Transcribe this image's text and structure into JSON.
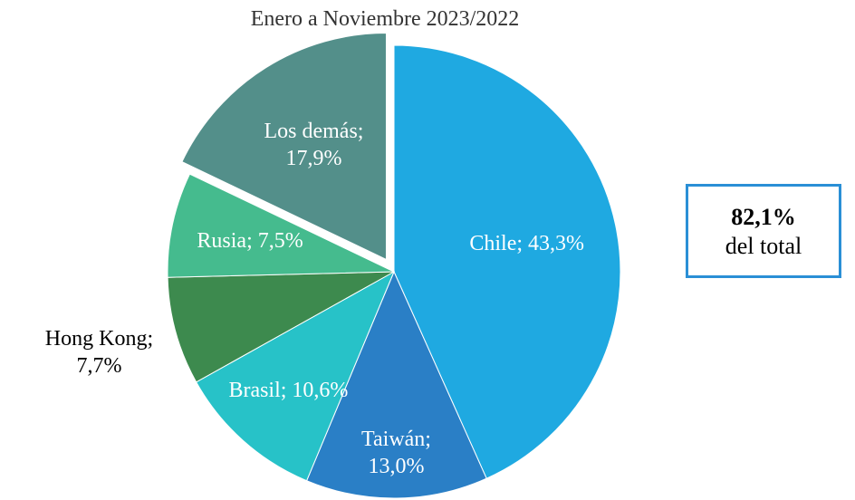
{
  "chart_data": {
    "type": "pie",
    "subtitle": "Enero a Noviembre  2023/2022",
    "categories": [
      "Chile",
      "Taiwán",
      "Brasil",
      "Hong Kong",
      "Rusia",
      "Los demás"
    ],
    "values": [
      43.3,
      13.0,
      10.6,
      7.7,
      7.5,
      17.9
    ],
    "value_labels": [
      "Chile; 43,3%",
      "Taiwán; 13,0%",
      "Brasil; 10,6%",
      "Hong Kong; 7,7%",
      "Rusia; 7,5%",
      "Los demás; 17,9%"
    ],
    "colors": [
      "#1fa9e1",
      "#2a7fc6",
      "#27c2c8",
      "#3d8a4e",
      "#45bb8e",
      "#538f8a"
    ],
    "exploded": "Los demás",
    "callout": {
      "value": "82,1%",
      "text": "del total"
    }
  }
}
